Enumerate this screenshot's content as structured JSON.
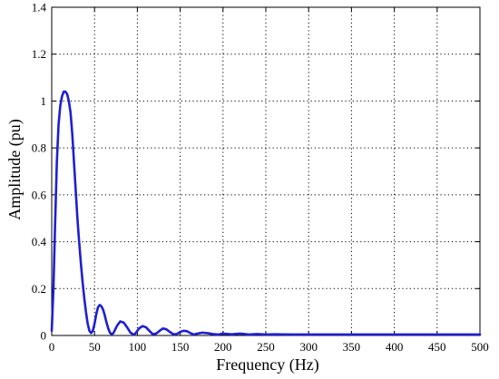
{
  "chart_data": {
    "type": "line",
    "title": "",
    "xlabel": "Frequency (Hz)",
    "ylabel": "Amplitude (pu)",
    "xlim": [
      0,
      500
    ],
    "ylim": [
      0,
      1.4
    ],
    "xticks": [
      0,
      50,
      100,
      150,
      200,
      250,
      300,
      350,
      400,
      450,
      500
    ],
    "yticks": [
      0,
      0.2,
      0.4,
      0.6,
      0.8,
      1,
      1.2,
      1.4
    ],
    "xtick_labels": [
      "0",
      "50",
      "100",
      "150",
      "200",
      "250",
      "300",
      "350",
      "400",
      "450",
      "500"
    ],
    "ytick_labels": [
      "0",
      "0.2",
      "0.4",
      "0.6",
      "0.8",
      "1",
      "1.2",
      "1.4"
    ],
    "grid": true,
    "colors": {
      "series": "#1f1fd2"
    },
    "series": [
      {
        "x": [
          0,
          2,
          4,
          6,
          8,
          10,
          12,
          14,
          16,
          18,
          20,
          22,
          24,
          26,
          28,
          30,
          32,
          34,
          36,
          38,
          40,
          42,
          44,
          46,
          48,
          50,
          52,
          54,
          56,
          58,
          60,
          62,
          64,
          66,
          68,
          70,
          72,
          76,
          80,
          84,
          88,
          92,
          96,
          98,
          102,
          106,
          110,
          114,
          118,
          122,
          126,
          130,
          134,
          138,
          142,
          146,
          150,
          154,
          158,
          162,
          166,
          170,
          176,
          182,
          188,
          194,
          200,
          210,
          220,
          230,
          240,
          250,
          260,
          280,
          300,
          350,
          400,
          450,
          500
        ],
        "y": [
          0.02,
          0.2,
          0.48,
          0.74,
          0.9,
          0.98,
          1.02,
          1.04,
          1.04,
          1.03,
          1.0,
          0.95,
          0.86,
          0.74,
          0.62,
          0.5,
          0.4,
          0.31,
          0.23,
          0.16,
          0.1,
          0.05,
          0.02,
          0.01,
          0.02,
          0.05,
          0.09,
          0.12,
          0.13,
          0.125,
          0.11,
          0.085,
          0.055,
          0.03,
          0.012,
          0.005,
          0.01,
          0.04,
          0.06,
          0.055,
          0.035,
          0.012,
          0.003,
          0.01,
          0.03,
          0.04,
          0.035,
          0.02,
          0.005,
          0.008,
          0.02,
          0.03,
          0.026,
          0.015,
          0.005,
          0.006,
          0.015,
          0.02,
          0.018,
          0.01,
          0.004,
          0.008,
          0.012,
          0.01,
          0.006,
          0.004,
          0.008,
          0.005,
          0.008,
          0.004,
          0.006,
          0.004,
          0.005,
          0.004,
          0.004,
          0.004,
          0.004,
          0.004,
          0.004
        ]
      }
    ]
  }
}
